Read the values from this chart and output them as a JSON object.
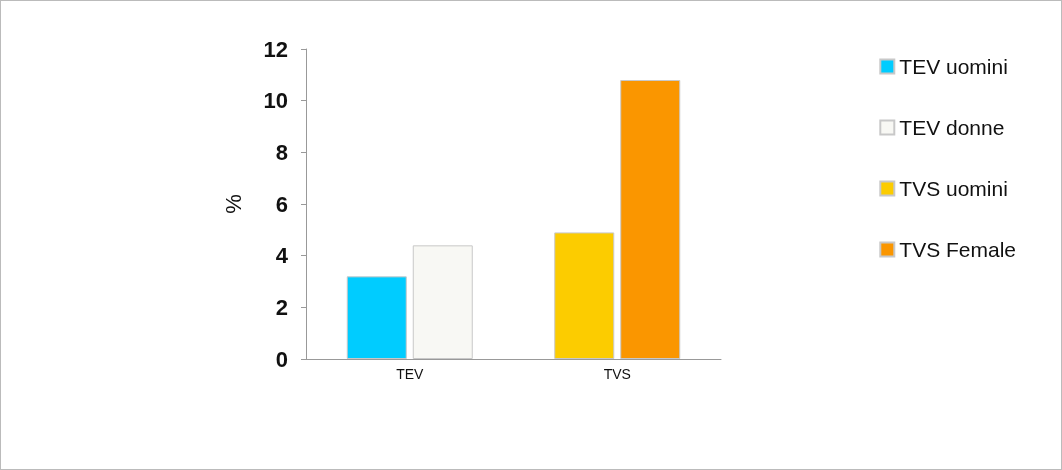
{
  "chart_data": {
    "type": "bar",
    "ylabel": "%",
    "categories": [
      "TEV",
      "TVS"
    ],
    "series": [
      {
        "name": "TEV uomini",
        "color": "#00ccff",
        "values": [
          3.2,
          null
        ]
      },
      {
        "name": "TEV donne",
        "color": "#f8f8f4",
        "values": [
          4.4,
          null
        ]
      },
      {
        "name": "TVS uomini",
        "color": "#fccc00",
        "values": [
          null,
          4.9
        ]
      },
      {
        "name": "TVS Female",
        "color": "#fa9600",
        "values": [
          null,
          10.8
        ]
      }
    ],
    "ylim": [
      0,
      12
    ],
    "yticks": [
      0,
      2,
      4,
      6,
      8,
      10,
      12
    ],
    "grid": false,
    "legend": "right"
  }
}
